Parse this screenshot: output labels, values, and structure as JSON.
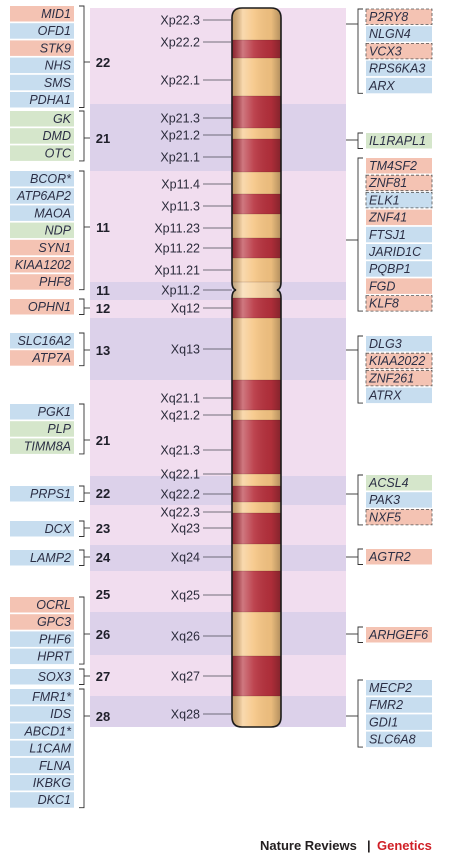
{
  "footer": {
    "brand": "Nature Reviews",
    "separator": "|",
    "journal": "Genetics"
  },
  "colors": {
    "light": "#f1ddef",
    "dark": "#dcd1ea",
    "mid": "#ebd6ec",
    "gene_blue": "#c7ddef",
    "gene_green": "#d5e6cb",
    "gene_red": "#f4c3b3",
    "chrom_light": "#f6c583",
    "chrom_dark": "#b6303c",
    "centromere": "#f8d4a2"
  },
  "bands": [
    {
      "name": "Xp22.3",
      "type": "light"
    },
    {
      "name": "Xp22.2",
      "type": "dark"
    },
    {
      "name": "Xp22.1",
      "type": "light"
    },
    {
      "name": "Xp21.3",
      "type": "dark"
    },
    {
      "name": "Xp21.2",
      "type": "light"
    },
    {
      "name": "Xp21.1",
      "type": "dark"
    },
    {
      "name": "Xp11.4",
      "type": "light"
    },
    {
      "name": "Xp11.3",
      "type": "dark"
    },
    {
      "name": "Xp11.23",
      "type": "light"
    },
    {
      "name": "Xp11.22",
      "type": "dark"
    },
    {
      "name": "Xp11.21",
      "type": "light"
    },
    {
      "name": "Xp11.2",
      "type": "centromere"
    },
    {
      "name": "Xq12",
      "type": "dark"
    },
    {
      "name": "Xq13",
      "type": "light"
    },
    {
      "name": "Xq21.1",
      "type": "dark"
    },
    {
      "name": "Xq21.2",
      "type": "light"
    },
    {
      "name": "Xq21.3",
      "type": "dark"
    },
    {
      "name": "Xq22.1",
      "type": "light"
    },
    {
      "name": "Xq22.2",
      "type": "dark"
    },
    {
      "name": "Xq22.3",
      "type": "light"
    },
    {
      "name": "Xq23",
      "type": "dark"
    },
    {
      "name": "Xq24",
      "type": "light"
    },
    {
      "name": "Xq25",
      "type": "dark"
    },
    {
      "name": "Xq26",
      "type": "light"
    },
    {
      "name": "Xq27",
      "type": "dark"
    },
    {
      "name": "Xq28",
      "type": "light"
    }
  ],
  "regions": [
    "22",
    "21",
    "11",
    "11",
    "12",
    "13",
    "21",
    "22",
    "23",
    "24",
    "25",
    "26",
    "27",
    "28"
  ],
  "left_genes": [
    [
      {
        "name": "MID1",
        "c": "red"
      },
      {
        "name": "OFD1",
        "c": "blue"
      },
      {
        "name": "STK9",
        "c": "red"
      },
      {
        "name": "NHS",
        "c": "blue"
      },
      {
        "name": "SMS",
        "c": "blue"
      },
      {
        "name": "PDHA1",
        "c": "blue"
      }
    ],
    [
      {
        "name": "GK",
        "c": "green"
      },
      {
        "name": "DMD",
        "c": "green"
      },
      {
        "name": "OTC",
        "c": "green"
      }
    ],
    [
      {
        "name": "BCOR*",
        "c": "blue"
      },
      {
        "name": "ATP6AP2",
        "c": "blue"
      },
      {
        "name": "MAOA",
        "c": "blue"
      },
      {
        "name": "NDP",
        "c": "green"
      },
      {
        "name": "SYN1",
        "c": "red"
      },
      {
        "name": "KIAA1202",
        "c": "red"
      },
      {
        "name": "PHF8",
        "c": "red"
      }
    ],
    [
      {
        "name": "OPHN1",
        "c": "red"
      }
    ],
    [
      {
        "name": "SLC16A2",
        "c": "blue"
      },
      {
        "name": "ATP7A",
        "c": "red"
      }
    ],
    [
      {
        "name": "PGK1",
        "c": "blue"
      },
      {
        "name": "PLP",
        "c": "green"
      },
      {
        "name": "TIMM8A",
        "c": "green"
      }
    ],
    [
      {
        "name": "PRPS1",
        "c": "blue"
      }
    ],
    [
      {
        "name": "DCX",
        "c": "blue"
      }
    ],
    [
      {
        "name": "LAMP2",
        "c": "blue"
      }
    ],
    [
      {
        "name": "OCRL",
        "c": "red"
      },
      {
        "name": "GPC3",
        "c": "red"
      },
      {
        "name": "PHF6",
        "c": "blue"
      },
      {
        "name": "HPRT",
        "c": "blue"
      }
    ],
    [
      {
        "name": "SOX3",
        "c": "blue"
      }
    ],
    [
      {
        "name": "FMR1*",
        "c": "blue"
      },
      {
        "name": "IDS",
        "c": "blue"
      },
      {
        "name": "ABCD1*",
        "c": "blue"
      },
      {
        "name": "L1CAM",
        "c": "blue"
      },
      {
        "name": "FLNA",
        "c": "blue"
      },
      {
        "name": "IKBKG",
        "c": "blue"
      },
      {
        "name": "DKC1",
        "c": "blue"
      }
    ]
  ],
  "right_genes": [
    [
      {
        "name": "P2RY8",
        "c": "red",
        "dash": true
      },
      {
        "name": "NLGN4",
        "c": "blue"
      },
      {
        "name": "VCX3",
        "c": "red",
        "dash": true
      },
      {
        "name": "RPS6KA3",
        "c": "blue"
      },
      {
        "name": "ARX",
        "c": "blue"
      }
    ],
    [
      {
        "name": "IL1RAPL1",
        "c": "green"
      }
    ],
    [
      {
        "name": "TM4SF2",
        "c": "red"
      },
      {
        "name": "ZNF81",
        "c": "red",
        "dash": true
      },
      {
        "name": "ELK1",
        "c": "blue",
        "dash": true
      },
      {
        "name": "ZNF41",
        "c": "red"
      },
      {
        "name": "FTSJ1",
        "c": "blue"
      },
      {
        "name": "JARID1C",
        "c": "blue"
      },
      {
        "name": "PQBP1",
        "c": "blue"
      },
      {
        "name": "FGD",
        "c": "red"
      },
      {
        "name": "KLF8",
        "c": "red",
        "dash": true
      }
    ],
    [
      {
        "name": "DLG3",
        "c": "blue"
      },
      {
        "name": "KIAA2022",
        "c": "red",
        "dash": true
      },
      {
        "name": "ZNF261",
        "c": "red",
        "dash": true
      },
      {
        "name": "ATRX",
        "c": "blue"
      }
    ],
    [
      {
        "name": "ACSL4",
        "c": "green"
      },
      {
        "name": "PAK3",
        "c": "blue"
      },
      {
        "name": "NXF5",
        "c": "red",
        "dash": true
      }
    ],
    [
      {
        "name": "AGTR2",
        "c": "red"
      }
    ],
    [
      {
        "name": "ARHGEF6",
        "c": "red"
      }
    ],
    [
      {
        "name": "MECP2",
        "c": "blue"
      },
      {
        "name": "FMR2",
        "c": "blue"
      },
      {
        "name": "GDI1",
        "c": "blue"
      },
      {
        "name": "SLC6A8",
        "c": "blue"
      }
    ]
  ]
}
